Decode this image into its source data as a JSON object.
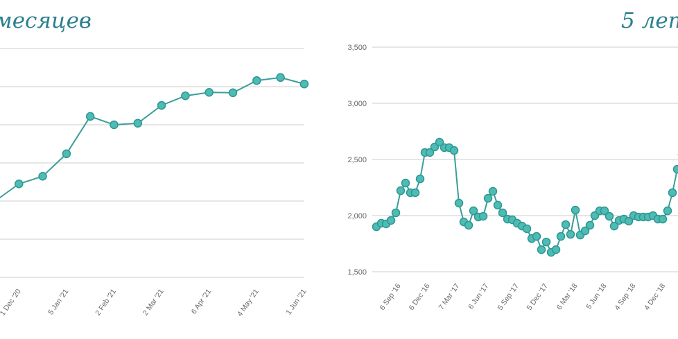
{
  "chart_data": [
    {
      "type": "line",
      "title": "месяцев",
      "y_unit": "gridline intervals (axis labels not visible)",
      "ylim": [
        0,
        6
      ],
      "tick_labels": [
        "1 Dec '20",
        "5 Jan '21",
        "2 Feb '21",
        "2 Mar '21",
        "6 Apr '21",
        "4 May '21",
        "1 Jun '21"
      ],
      "tick_index": [
        1,
        3,
        5,
        7,
        9,
        11,
        13
      ],
      "values": [
        2.0,
        2.45,
        2.65,
        3.24,
        4.22,
        4.0,
        4.04,
        4.51,
        4.76,
        4.85,
        4.84,
        5.16,
        5.24,
        5.07
      ],
      "color": "#4dbcb5"
    },
    {
      "type": "line",
      "title": "5 лет",
      "ylim": [
        1500,
        3500
      ],
      "y_ticks": [
        "1,500",
        "2,000",
        "2,500",
        "3,000",
        "3,500"
      ],
      "y_tick_values": [
        1500,
        2000,
        2500,
        3000,
        3500
      ],
      "tick_labels": [
        "6 Sep '16",
        "6 Dec '16",
        "7 Mar '17",
        "6 Jun '17",
        "5 Sep '17",
        "5 Dec '17",
        "6 Mar '18",
        "5 Jun '18",
        "4 Sep '18",
        "4 Dec '18",
        "5 M"
      ],
      "tick_index": [
        4.6,
        10.6,
        16.7,
        22.7,
        28.9,
        34.9,
        41,
        47,
        53,
        59.1,
        64.5
      ],
      "values": [
        1901,
        1932,
        1926,
        1957,
        2025,
        2222,
        2290,
        2204,
        2204,
        2327,
        2562,
        2562,
        2611,
        2654,
        2605,
        2605,
        2580,
        2111,
        1944,
        1914,
        2043,
        1988,
        1994,
        2154,
        2216,
        2093,
        2025,
        1969,
        1963,
        1932,
        1907,
        1883,
        1796,
        1815,
        1697,
        1765,
        1673,
        1697,
        1815,
        1920,
        1833,
        2049,
        1827,
        1864,
        1914,
        2000,
        2043,
        2043,
        1994,
        1907,
        1957,
        1969,
        1951,
        2000,
        1988,
        1988,
        1988,
        2000,
        1969,
        1969,
        2043,
        2204,
        2413,
        2543
      ],
      "color": "#4dbcb5"
    }
  ]
}
